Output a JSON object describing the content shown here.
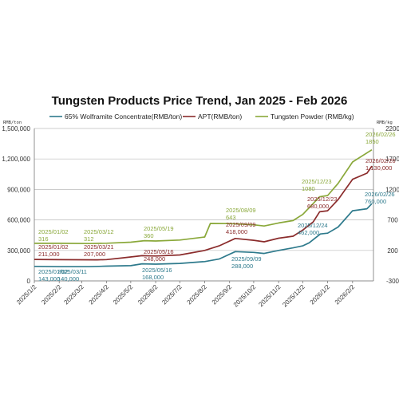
{
  "chart_data": {
    "type": "line",
    "title": "Tungsten Products Price Trend, Jan 2025 - Feb 2026",
    "y_left_unit": "RMB/ton",
    "y_right_unit": "RMB/kg",
    "y_left_ticks": [
      "0",
      "300,000",
      "600,000",
      "900,000",
      "1,200,000",
      "1,500,000"
    ],
    "y_left_range": [
      0,
      1500000
    ],
    "y_right_ticks": [
      "-300",
      "200",
      "700",
      "1200",
      "1700",
      "2200"
    ],
    "y_right_range": [
      -300,
      2200
    ],
    "x_ticks": [
      "2025/1/2",
      "2025/2/2",
      "2025/3/2",
      "2025/4/2",
      "2025/5/2",
      "2025/6/2",
      "2025/7/2",
      "2025/8/2",
      "2025/9/2",
      "2025/10/2",
      "2025/11/2",
      "2025/12/2",
      "2026/1/2",
      "2026/2/2"
    ],
    "grid": true,
    "legend_position": "top",
    "series": [
      {
        "name": "65% Wolframite Concentrate(RMB/ton)",
        "axis": "left",
        "color": "#2e7a8c",
        "points": [
          [
            "2025/01/02",
            143000
          ],
          [
            "2025/02/02",
            140000
          ],
          [
            "2025/03/11",
            140000
          ],
          [
            "2025/04/02",
            145000
          ],
          [
            "2025/05/02",
            150000
          ],
          [
            "2025/05/16",
            168000
          ],
          [
            "2025/06/02",
            165000
          ],
          [
            "2025/07/02",
            172000
          ],
          [
            "2025/08/02",
            190000
          ],
          [
            "2025/08/20",
            215000
          ],
          [
            "2025/09/09",
            288000
          ],
          [
            "2025/10/02",
            280000
          ],
          [
            "2025/10/15",
            270000
          ],
          [
            "2025/11/02",
            300000
          ],
          [
            "2025/11/20",
            325000
          ],
          [
            "2025/12/02",
            345000
          ],
          [
            "2025/12/10",
            375000
          ],
          [
            "2025/12/24",
            462000
          ],
          [
            "2026/01/02",
            470000
          ],
          [
            "2026/01/15",
            530000
          ],
          [
            "2026/02/02",
            690000
          ],
          [
            "2026/02/20",
            710000
          ],
          [
            "2026/02/26",
            760000
          ]
        ]
      },
      {
        "name": "APT(RMB/ton)",
        "axis": "left",
        "color": "#8b2c2c",
        "points": [
          [
            "2025/01/02",
            211000
          ],
          [
            "2025/02/02",
            209000
          ],
          [
            "2025/03/21",
            207000
          ],
          [
            "2025/04/02",
            210000
          ],
          [
            "2025/04/20",
            225000
          ],
          [
            "2025/05/16",
            248000
          ],
          [
            "2025/06/02",
            245000
          ],
          [
            "2025/07/02",
            255000
          ],
          [
            "2025/08/02",
            300000
          ],
          [
            "2025/08/20",
            345000
          ],
          [
            "2025/09/09",
            418000
          ],
          [
            "2025/10/02",
            400000
          ],
          [
            "2025/10/15",
            385000
          ],
          [
            "2025/11/02",
            420000
          ],
          [
            "2025/11/20",
            440000
          ],
          [
            "2025/12/02",
            500000
          ],
          [
            "2025/12/15",
            580000
          ],
          [
            "2025/12/23",
            680000
          ],
          [
            "2026/01/02",
            690000
          ],
          [
            "2026/01/15",
            800000
          ],
          [
            "2026/02/02",
            1000000
          ],
          [
            "2026/02/20",
            1060000
          ],
          [
            "2026/02/26",
            1130000
          ]
        ]
      },
      {
        "name": "Tungsten Powder (RMB/kg)",
        "axis": "right",
        "color": "#8aa83a",
        "points": [
          [
            "2025/01/02",
            316
          ],
          [
            "2025/02/02",
            316
          ],
          [
            "2025/03/12",
            312
          ],
          [
            "2025/04/02",
            318
          ],
          [
            "2025/05/02",
            335
          ],
          [
            "2025/05/19",
            360
          ],
          [
            "2025/06/02",
            355
          ],
          [
            "2025/07/02",
            370
          ],
          [
            "2025/08/02",
            420
          ],
          [
            "2025/08/09",
            643
          ],
          [
            "2025/09/02",
            640
          ],
          [
            "2025/10/02",
            620
          ],
          [
            "2025/10/15",
            600
          ],
          [
            "2025/11/02",
            650
          ],
          [
            "2025/11/20",
            690
          ],
          [
            "2025/12/02",
            790
          ],
          [
            "2025/12/23",
            1080
          ],
          [
            "2026/01/02",
            1100
          ],
          [
            "2026/01/15",
            1300
          ],
          [
            "2026/02/02",
            1650
          ],
          [
            "2026/02/26",
            1850
          ]
        ]
      }
    ],
    "annotations": [
      {
        "series": 0,
        "lines": [
          "2025/01/02",
          "143,000"
        ]
      },
      {
        "series": 0,
        "lines": [
          "2025/03/11",
          "140,000"
        ]
      },
      {
        "series": 0,
        "lines": [
          "2025/05/16",
          "168,000"
        ]
      },
      {
        "series": 0,
        "lines": [
          "2025/09/09",
          "288,000"
        ]
      },
      {
        "series": 0,
        "lines": [
          "2025/12/24",
          "462,000"
        ]
      },
      {
        "series": 0,
        "lines": [
          "2026/02/26",
          "760,000"
        ]
      },
      {
        "series": 1,
        "lines": [
          "2025/01/02",
          "211,000"
        ]
      },
      {
        "series": 1,
        "lines": [
          "2025/03/21",
          "207,000"
        ]
      },
      {
        "series": 1,
        "lines": [
          "2025/05/16",
          "248,000"
        ]
      },
      {
        "series": 1,
        "lines": [
          "2025/09/09",
          "418,000"
        ]
      },
      {
        "series": 1,
        "lines": [
          "2025/12/23",
          "680,000"
        ]
      },
      {
        "series": 1,
        "lines": [
          "2026/02/26",
          "1,130,000"
        ]
      },
      {
        "series": 2,
        "lines": [
          "2025/01/02",
          "316"
        ]
      },
      {
        "series": 2,
        "lines": [
          "2025/03/12",
          "312"
        ]
      },
      {
        "series": 2,
        "lines": [
          "2025/05/19",
          "360"
        ]
      },
      {
        "series": 2,
        "lines": [
          "2025/08/09",
          "643"
        ]
      },
      {
        "series": 2,
        "lines": [
          "2025/12/23",
          "1080"
        ]
      },
      {
        "series": 2,
        "lines": [
          "2026/02/26",
          "1850"
        ]
      }
    ]
  }
}
